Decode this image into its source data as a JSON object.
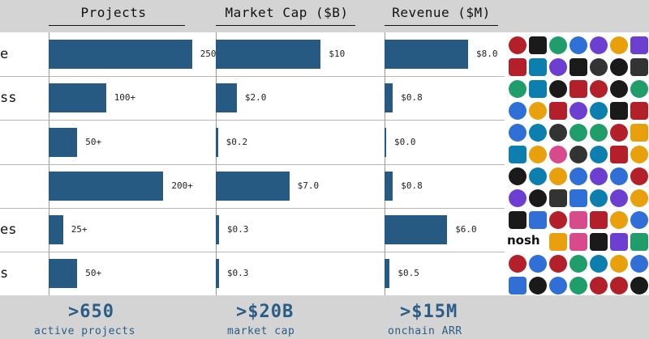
{
  "chart_data": [
    {
      "type": "bar",
      "orientation": "horizontal",
      "title": "Projects",
      "categories": [
        "e",
        "ss",
        "",
        "",
        "es",
        "s"
      ],
      "values": [
        250,
        100,
        50,
        200,
        25,
        50
      ],
      "labels": [
        "250+",
        "100+",
        "50+",
        "200+",
        "25+",
        "50+"
      ],
      "xlim": [
        0,
        290
      ]
    },
    {
      "type": "bar",
      "orientation": "horizontal",
      "title": "Market Cap ($B)",
      "categories": [
        "e",
        "ss",
        "",
        "",
        "es",
        "s"
      ],
      "values": [
        10,
        2.0,
        0.2,
        7.0,
        0.3,
        0.3
      ],
      "labels": [
        "$10",
        "$2.0",
        "$0.2",
        "$7.0",
        "$0.3",
        "$0.3"
      ],
      "xlim": [
        0,
        16
      ]
    },
    {
      "type": "bar",
      "orientation": "horizontal",
      "title": "Revenue ($M)",
      "categories": [
        "e",
        "ss",
        "",
        "",
        "es",
        "s"
      ],
      "values": [
        8.0,
        0.8,
        0.0,
        0.8,
        6.0,
        0.5
      ],
      "labels": [
        "$8.0",
        "$0.8",
        "$0.0",
        "$0.8",
        "$6.0",
        "$0.5"
      ],
      "xlim": [
        0,
        11.5
      ]
    }
  ],
  "rows": [
    "e",
    "ss",
    "",
    "",
    "es",
    "s"
  ],
  "summary": [
    {
      "big": ">650",
      "small": "active projects"
    },
    {
      "big": ">$20B",
      "small": "market cap"
    },
    {
      "big": ">$15M",
      "small": "onchain ARR"
    }
  ],
  "logo_words": [
    "nosh"
  ],
  "colors": {
    "bar": "#265a82",
    "accent": "#2b5c86",
    "background": "#d4d4d4"
  }
}
